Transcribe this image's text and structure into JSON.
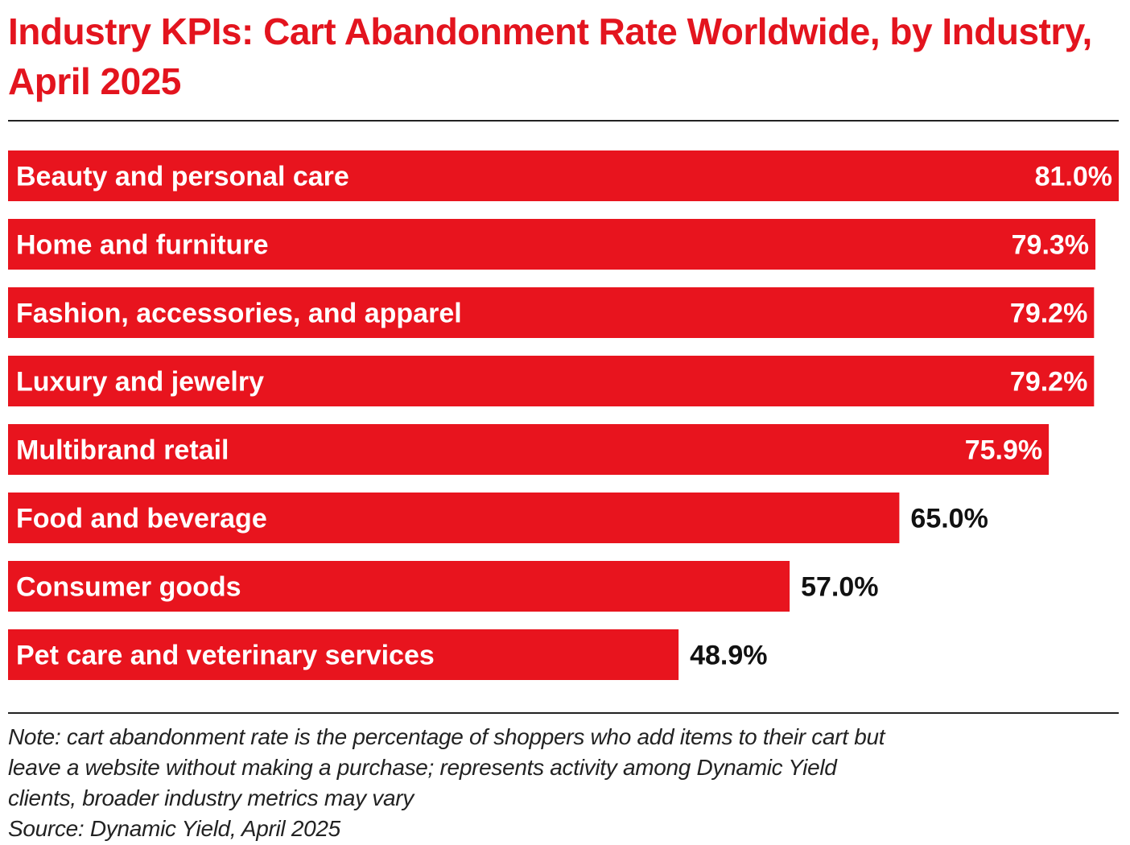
{
  "chart_data": {
    "type": "bar",
    "orientation": "horizontal",
    "title": "Industry KPIs: Cart Abandonment Rate Worldwide, by Industry, April 2025",
    "categories": [
      "Beauty and personal care",
      "Home and furniture",
      "Fashion, accessories, and apparel",
      "Luxury and jewelry",
      "Multibrand retail",
      "Food and beverage",
      "Consumer goods",
      "Pet care and veterinary services"
    ],
    "values": [
      81.0,
      79.3,
      79.2,
      79.2,
      75.9,
      65.0,
      57.0,
      48.9
    ],
    "value_labels": [
      "81.0%",
      "79.3%",
      "79.2%",
      "79.2%",
      "75.9%",
      "65.0%",
      "57.0%",
      "48.9%"
    ],
    "unit": "%",
    "xlim": [
      0,
      81
    ],
    "xlabel": "",
    "ylabel": "",
    "grid": false,
    "bar_color": "#e8141e",
    "title_color": "#e3141e"
  },
  "footer": {
    "note_lines": [
      "Note: cart abandonment rate is the percentage of shoppers who add items to their cart but",
      "leave a website without making a purchase; represents activity among Dynamic Yield",
      "clients, broader industry metrics may vary"
    ],
    "source": "Source: Dynamic Yield, April 2025"
  }
}
